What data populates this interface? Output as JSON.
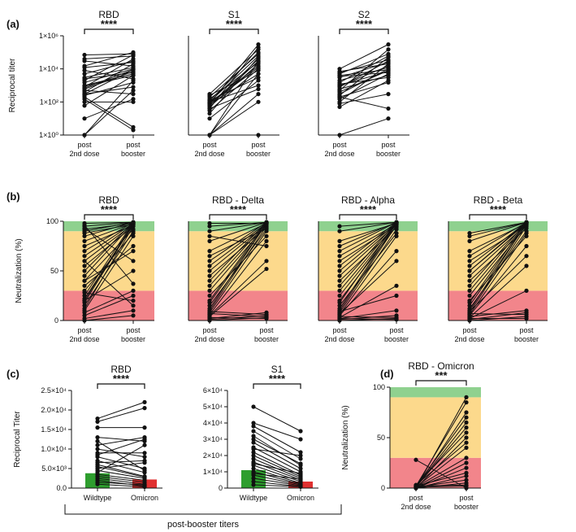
{
  "figure": {
    "panel_labels": [
      "(a)",
      "(b)",
      "(c)",
      "(d)"
    ],
    "bracket_caption": "post-booster titers",
    "band_colors": {
      "green": "#8fd18f",
      "yellow": "#fcd98c",
      "red": "#f2858b"
    }
  },
  "chart_data": [
    {
      "id": "a-rbd",
      "panel": "(a)",
      "type": "scatter",
      "title": "RBD",
      "significance": "****",
      "ylabel": "Reciprocal titer",
      "yscale": "log",
      "yticks": [
        "1×10⁰",
        "1×10²",
        "1×10⁴",
        "1×10⁶"
      ],
      "ylim": [
        1,
        1000000
      ],
      "categories": [
        [
          "post",
          "2nd dose"
        ],
        [
          "post",
          "booster"
        ]
      ],
      "pairs": [
        [
          1,
          2000
        ],
        [
          1,
          500
        ],
        [
          60,
          4000
        ],
        [
          10,
          150
        ],
        [
          300,
          9000
        ],
        [
          800,
          40000
        ],
        [
          2000,
          70000
        ],
        [
          5000,
          30000
        ],
        [
          15000,
          100000
        ],
        [
          30000,
          15000
        ],
        [
          40000,
          60000
        ],
        [
          70000,
          80000
        ],
        [
          300,
          800
        ],
        [
          150,
          2
        ],
        [
          200,
          3
        ],
        [
          500,
          300
        ],
        [
          100,
          100
        ],
        [
          1000,
          5000
        ],
        [
          400,
          20000
        ],
        [
          600,
          7000
        ],
        [
          3000,
          12000
        ],
        [
          8000,
          2500
        ],
        [
          1500,
          10000
        ],
        [
          900,
          4000
        ],
        [
          250,
          1500
        ],
        [
          12000,
          25000
        ],
        [
          700,
          9000
        ],
        [
          2500,
          6000
        ]
      ]
    },
    {
      "id": "a-s1",
      "panel": "(a)",
      "type": "scatter",
      "title": "S1",
      "significance": "****",
      "yscale": "log",
      "ylim": [
        1,
        1000000
      ],
      "categories": [
        [
          "post",
          "2nd dose"
        ],
        [
          "post",
          "booster"
        ]
      ],
      "pairs": [
        [
          1,
          1
        ],
        [
          1,
          300
        ],
        [
          1,
          5000
        ],
        [
          1,
          30000
        ],
        [
          1,
          100
        ],
        [
          10,
          2000
        ],
        [
          20,
          50000
        ],
        [
          30,
          10000
        ],
        [
          40,
          200000
        ],
        [
          50,
          20000
        ],
        [
          60,
          40000
        ],
        [
          70,
          5000
        ],
        [
          80,
          300000
        ],
        [
          90,
          15000
        ],
        [
          100,
          60000
        ],
        [
          120,
          3000
        ],
        [
          150,
          25000
        ],
        [
          200,
          80000
        ],
        [
          250,
          8000
        ],
        [
          300,
          150000
        ],
        [
          100,
          1000
        ],
        [
          80,
          12000
        ],
        [
          60,
          30000
        ],
        [
          40,
          600
        ],
        [
          120,
          100000
        ]
      ]
    },
    {
      "id": "a-s2",
      "panel": "(a)",
      "type": "scatter",
      "title": "S2",
      "significance": "****",
      "yscale": "log",
      "ylim": [
        1,
        1000000
      ],
      "categories": [
        [
          "post",
          "2nd dose"
        ],
        [
          "post",
          "booster"
        ]
      ],
      "pairs": [
        [
          1,
          10
        ],
        [
          50,
          2000
        ],
        [
          80,
          300
        ],
        [
          100,
          20000
        ],
        [
          150,
          5000
        ],
        [
          200,
          40
        ],
        [
          250,
          50000
        ],
        [
          300,
          10000
        ],
        [
          400,
          8000
        ],
        [
          500,
          150000
        ],
        [
          600,
          4000
        ],
        [
          800,
          30000
        ],
        [
          1000,
          7000
        ],
        [
          1500,
          60000
        ],
        [
          2000,
          12000
        ],
        [
          3000,
          25000
        ],
        [
          4000,
          9000
        ],
        [
          5000,
          80000
        ],
        [
          7000,
          20000
        ],
        [
          10000,
          300000
        ],
        [
          200,
          1500
        ],
        [
          900,
          15000
        ],
        [
          3500,
          6000
        ],
        [
          6000,
          35000
        ],
        [
          1200,
          3000
        ]
      ]
    },
    {
      "id": "b-rbd",
      "panel": "(b)",
      "type": "scatter",
      "title": "RBD",
      "significance": "****",
      "ylabel": "Neutralization (%)",
      "ylim": [
        0,
        100
      ],
      "yticks": [
        "0",
        "50",
        "100"
      ],
      "categories": [
        [
          "post",
          "2nd dose"
        ],
        [
          "post",
          "booster"
        ]
      ],
      "pairs": [
        [
          0,
          5
        ],
        [
          2,
          10
        ],
        [
          5,
          25
        ],
        [
          8,
          30
        ],
        [
          10,
          85
        ],
        [
          12,
          95
        ],
        [
          15,
          90
        ],
        [
          18,
          97
        ],
        [
          20,
          98
        ],
        [
          22,
          96
        ],
        [
          25,
          99
        ],
        [
          28,
          20
        ],
        [
          30,
          88
        ],
        [
          35,
          75
        ],
        [
          40,
          92
        ],
        [
          45,
          98
        ],
        [
          50,
          99
        ],
        [
          55,
          95
        ],
        [
          60,
          97
        ],
        [
          65,
          98
        ],
        [
          70,
          99
        ],
        [
          75,
          96
        ],
        [
          80,
          98
        ],
        [
          85,
          99
        ],
        [
          88,
          97
        ],
        [
          90,
          99
        ],
        [
          92,
          98
        ],
        [
          95,
          99
        ],
        [
          98,
          99
        ],
        [
          96,
          37
        ],
        [
          93,
          60
        ],
        [
          60,
          15
        ],
        [
          40,
          70
        ],
        [
          20,
          50
        ]
      ]
    },
    {
      "id": "b-delta",
      "panel": "(b)",
      "type": "scatter",
      "title": "RBD - Delta",
      "significance": "****",
      "ylim": [
        0,
        100
      ],
      "categories": [
        [
          "post",
          "2nd dose"
        ],
        [
          "post",
          "booster"
        ]
      ],
      "pairs": [
        [
          0,
          3
        ],
        [
          1,
          5
        ],
        [
          2,
          8
        ],
        [
          3,
          2
        ],
        [
          5,
          60
        ],
        [
          6,
          80
        ],
        [
          8,
          90
        ],
        [
          10,
          95
        ],
        [
          12,
          98
        ],
        [
          15,
          92
        ],
        [
          18,
          97
        ],
        [
          20,
          99
        ],
        [
          25,
          85
        ],
        [
          30,
          96
        ],
        [
          35,
          98
        ],
        [
          40,
          99
        ],
        [
          45,
          94
        ],
        [
          50,
          97
        ],
        [
          55,
          98
        ],
        [
          60,
          99
        ],
        [
          70,
          98
        ],
        [
          80,
          99
        ],
        [
          90,
          99
        ],
        [
          98,
          98
        ],
        [
          95,
          99
        ],
        [
          85,
          75
        ],
        [
          65,
          93
        ],
        [
          4,
          52
        ],
        [
          7,
          4
        ],
        [
          9,
          6
        ]
      ]
    },
    {
      "id": "b-alpha",
      "panel": "(b)",
      "type": "scatter",
      "title": "RBD - Alpha",
      "significance": "****",
      "ylim": [
        0,
        100
      ],
      "categories": [
        [
          "post",
          "2nd dose"
        ],
        [
          "post",
          "booster"
        ]
      ],
      "pairs": [
        [
          0,
          2
        ],
        [
          1,
          5
        ],
        [
          2,
          10
        ],
        [
          3,
          35
        ],
        [
          5,
          70
        ],
        [
          6,
          85
        ],
        [
          8,
          92
        ],
        [
          10,
          96
        ],
        [
          12,
          98
        ],
        [
          15,
          88
        ],
        [
          18,
          99
        ],
        [
          20,
          95
        ],
        [
          25,
          97
        ],
        [
          30,
          98
        ],
        [
          35,
          99
        ],
        [
          40,
          94
        ],
        [
          45,
          97
        ],
        [
          50,
          98
        ],
        [
          55,
          99
        ],
        [
          60,
          96
        ],
        [
          70,
          99
        ],
        [
          80,
          98
        ],
        [
          90,
          99
        ],
        [
          95,
          99
        ],
        [
          2,
          1
        ],
        [
          4,
          3
        ],
        [
          7,
          60
        ],
        [
          9,
          25
        ],
        [
          65,
          97
        ],
        [
          75,
          99
        ]
      ]
    },
    {
      "id": "b-beta",
      "panel": "(b)",
      "type": "scatter",
      "title": "RBD - Beta",
      "significance": "****",
      "ylim": [
        0,
        100
      ],
      "categories": [
        [
          "post",
          "2nd dose"
        ],
        [
          "post",
          "booster"
        ]
      ],
      "pairs": [
        [
          0,
          4
        ],
        [
          1,
          8
        ],
        [
          2,
          30
        ],
        [
          3,
          55
        ],
        [
          5,
          75
        ],
        [
          6,
          88
        ],
        [
          8,
          95
        ],
        [
          10,
          98
        ],
        [
          12,
          90
        ],
        [
          15,
          97
        ],
        [
          18,
          99
        ],
        [
          20,
          85
        ],
        [
          25,
          96
        ],
        [
          30,
          98
        ],
        [
          35,
          99
        ],
        [
          40,
          93
        ],
        [
          45,
          97
        ],
        [
          50,
          98
        ],
        [
          55,
          99
        ],
        [
          60,
          96
        ],
        [
          65,
          99
        ],
        [
          70,
          98
        ],
        [
          80,
          99
        ],
        [
          88,
          99
        ],
        [
          2,
          2
        ],
        [
          4,
          10
        ],
        [
          7,
          6
        ],
        [
          9,
          65
        ],
        [
          50,
          99
        ],
        [
          85,
          99
        ]
      ]
    },
    {
      "id": "c-rbd",
      "panel": "(c)",
      "type": "bar",
      "title": "RBD",
      "significance": "****",
      "ylabel": "Reciprocal Titer",
      "ylim": [
        0,
        25000
      ],
      "yticks": [
        "0.0",
        "5.0×10³",
        "1.0×10⁴",
        "1.5×10⁴",
        "2.0×10⁴",
        "2.5×10⁴"
      ],
      "categories": [
        "Wildtype",
        "Omicron"
      ],
      "values": [
        3800,
        2200
      ],
      "bar_colors": [
        "#2e9e2e",
        "#e03030"
      ],
      "pairs": [
        [
          17800,
          22000
        ],
        [
          17000,
          20500
        ],
        [
          15500,
          15500
        ],
        [
          13000,
          12000
        ],
        [
          11000,
          13000
        ],
        [
          10000,
          8000
        ],
        [
          9000,
          9000
        ],
        [
          8000,
          5000
        ],
        [
          7000,
          4000
        ],
        [
          6500,
          7000
        ],
        [
          6000,
          3000
        ],
        [
          5000,
          6500
        ],
        [
          4500,
          2500
        ],
        [
          4000,
          11000
        ],
        [
          3500,
          2000
        ],
        [
          3000,
          1500
        ],
        [
          2500,
          1000
        ],
        [
          2000,
          500
        ],
        [
          1500,
          800
        ],
        [
          1000,
          300
        ],
        [
          8500,
          12500
        ],
        [
          5500,
          2800
        ],
        [
          12000,
          4500
        ]
      ]
    },
    {
      "id": "c-s1",
      "panel": "(c)",
      "type": "bar",
      "title": "S1",
      "significance": "****",
      "ylim": [
        0,
        60000
      ],
      "yticks": [
        "0",
        "1×10⁴",
        "2×10⁴",
        "3×10⁴",
        "4×10⁴",
        "5×10⁴",
        "6×10⁴"
      ],
      "categories": [
        "Wildtype",
        "Omicron"
      ],
      "values": [
        11000,
        4000
      ],
      "bar_colors": [
        "#2e9e2e",
        "#e03030"
      ],
      "pairs": [
        [
          50000,
          35000
        ],
        [
          40000,
          30000
        ],
        [
          38000,
          22000
        ],
        [
          35000,
          18000
        ],
        [
          30000,
          15000
        ],
        [
          28000,
          12000
        ],
        [
          25000,
          10000
        ],
        [
          22000,
          8000
        ],
        [
          20000,
          7000
        ],
        [
          18000,
          6000
        ],
        [
          16000,
          5000
        ],
        [
          14000,
          4000
        ],
        [
          12000,
          3000
        ],
        [
          10000,
          2500
        ],
        [
          8000,
          2000
        ],
        [
          6000,
          1500
        ],
        [
          4000,
          1000
        ],
        [
          2000,
          800
        ],
        [
          24000,
          20000
        ],
        [
          15000,
          9000
        ],
        [
          9000,
          5500
        ],
        [
          32000,
          14000
        ]
      ]
    },
    {
      "id": "d-omicron",
      "panel": "(d)",
      "type": "scatter",
      "title": "RBD - Omicron",
      "significance": "***",
      "ylabel": "Neutralization (%)",
      "ylim": [
        0,
        100
      ],
      "yticks": [
        "0",
        "50",
        "100"
      ],
      "categories": [
        [
          "post",
          "2nd dose"
        ],
        [
          "post",
          "booster"
        ]
      ],
      "pairs": [
        [
          0,
          5
        ],
        [
          0,
          20
        ],
        [
          1,
          40
        ],
        [
          1,
          60
        ],
        [
          2,
          70
        ],
        [
          2,
          85
        ],
        [
          0,
          90
        ],
        [
          3,
          55
        ],
        [
          1,
          30
        ],
        [
          0,
          12
        ],
        [
          2,
          3
        ],
        [
          1,
          8
        ],
        [
          0,
          25
        ],
        [
          3,
          45
        ],
        [
          28,
          0
        ],
        [
          1,
          65
        ],
        [
          0,
          75
        ],
        [
          2,
          15
        ],
        [
          0,
          50
        ],
        [
          1,
          2
        ]
      ]
    }
  ]
}
